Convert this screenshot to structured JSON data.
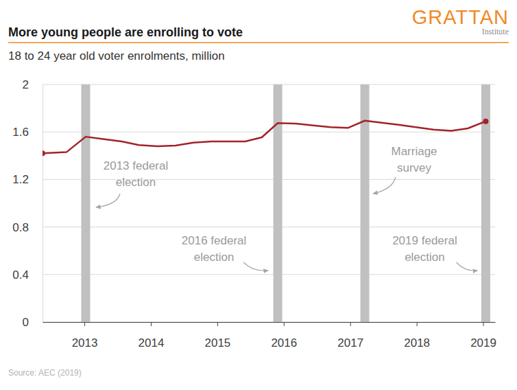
{
  "chart_data": {
    "type": "line",
    "title": "More young people are enrolling to vote",
    "subtitle": "18 to 24 year old voter enrolments, million",
    "logo": "GRATTAN",
    "logo_subtitle": "Institute",
    "source": "Source: AEC (2019)",
    "x": [
      2012.37,
      2012.73,
      2013.02,
      2013.28,
      2013.56,
      2013.82,
      2014.1,
      2014.37,
      2014.64,
      2014.91,
      2015.18,
      2015.42,
      2015.67,
      2015.91,
      2016.18,
      2016.45,
      2016.71,
      2016.97,
      2017.22,
      2017.73,
      2018.25,
      2018.52,
      2018.77,
      2019.04
    ],
    "values": [
      1.42,
      1.43,
      1.56,
      1.54,
      1.52,
      1.49,
      1.48,
      1.485,
      1.51,
      1.52,
      1.52,
      1.52,
      1.555,
      1.675,
      1.67,
      1.655,
      1.64,
      1.635,
      1.695,
      1.66,
      1.62,
      1.61,
      1.63,
      1.69
    ],
    "color": "#a3222a",
    "marker": "circle",
    "xlim": [
      2012.37,
      2019.18
    ],
    "xticks": [
      2013,
      2014,
      2015,
      2016,
      2017,
      2018,
      2019
    ],
    "ylim": [
      0,
      2
    ],
    "yticks": [
      0,
      0.4,
      0.8,
      1.2,
      1.6,
      2
    ],
    "grid": true,
    "events": [
      {
        "x": 2013.02,
        "label": [
          "2013 federal",
          "election"
        ]
      },
      {
        "x": 2015.91,
        "label": [
          "2016 federal",
          "election"
        ]
      },
      {
        "x": 2017.22,
        "label": [
          "Marriage",
          "survey"
        ]
      },
      {
        "x": 2019.04,
        "label": [
          "2019 federal",
          "election"
        ]
      }
    ]
  }
}
